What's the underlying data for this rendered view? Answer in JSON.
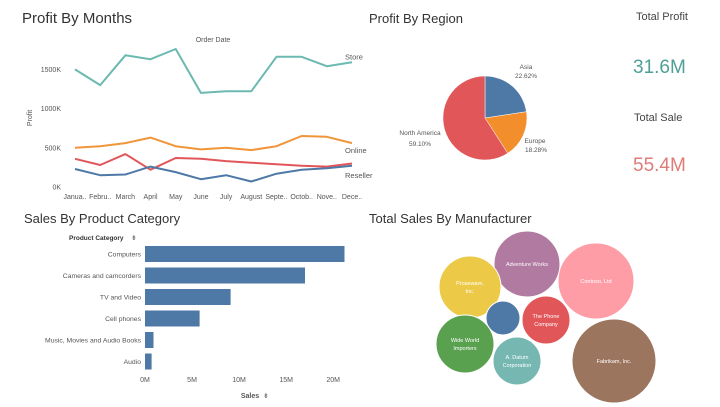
{
  "dashboard": {
    "profit_by_months_title": "Profit By Months",
    "profit_by_region_title": "Profit By Region",
    "sales_by_category_title": "Sales By Product Category",
    "sales_by_manufacturer_title": "Total Sales By Manufacturer"
  },
  "kpis": {
    "total_profit_label": "Total Profit",
    "total_profit_value": "31.6M",
    "total_profit_color": "#4e9f97",
    "total_sale_label": "Total Sale",
    "total_sale_value": "55.4M",
    "total_sale_color": "#e07b78"
  },
  "chart_data": [
    {
      "type": "line",
      "title": "Profit By Months",
      "xlabel": "Order Date",
      "ylabel": "Profit",
      "categories": [
        "Janua..",
        "Febru..",
        "March",
        "April",
        "May",
        "June",
        "July",
        "August",
        "Septe..",
        "Octob..",
        "Nove..",
        "Dece.."
      ],
      "yticks": [
        0,
        500000,
        1000000,
        1500000
      ],
      "ytick_labels": [
        "0K",
        "500K",
        "1000K",
        "1500K"
      ],
      "ylim": [
        0,
        1900000
      ],
      "series": [
        {
          "name": "Store",
          "color": "#6bb9b0",
          "values": [
            1500000,
            1300000,
            1680000,
            1630000,
            1760000,
            1200000,
            1220000,
            1220000,
            1660000,
            1660000,
            1540000,
            1590000
          ]
        },
        {
          "name": "Online",
          "color": "#f0953a",
          "values": [
            500000,
            520000,
            560000,
            630000,
            520000,
            480000,
            500000,
            470000,
            520000,
            650000,
            640000,
            560000
          ]
        },
        {
          "name": "",
          "color": "#e15759",
          "values": [
            360000,
            280000,
            420000,
            220000,
            370000,
            360000,
            330000,
            310000,
            290000,
            270000,
            260000,
            300000
          ]
        },
        {
          "name": "Reseller",
          "color": "#4e79a7",
          "values": [
            230000,
            150000,
            160000,
            260000,
            190000,
            100000,
            150000,
            70000,
            170000,
            220000,
            240000,
            270000
          ]
        }
      ]
    },
    {
      "type": "pie",
      "title": "Profit By Region",
      "slices": [
        {
          "label": "Asia",
          "pct_label": "22.62%",
          "value": 22.62,
          "color": "#4e79a7"
        },
        {
          "label": "Europe",
          "pct_label": "18.28%",
          "value": 18.28,
          "color": "#f28e2b"
        },
        {
          "label": "North America",
          "pct_label": "59.10%",
          "value": 59.1,
          "color": "#e15759"
        }
      ]
    },
    {
      "type": "bar",
      "orientation": "horizontal",
      "title": "Sales By Product Category",
      "category_header": "Product Category",
      "xlabel": "Sales",
      "categories": [
        "Computers",
        "Cameras and camcorders",
        "TV and Video",
        "Cell phones",
        "Music, Movies and Audio Books",
        "Audio"
      ],
      "values": [
        21200000,
        17000000,
        9100000,
        5800000,
        900000,
        700000
      ],
      "xticks": [
        0,
        5000000,
        10000000,
        15000000,
        20000000
      ],
      "xtick_labels": [
        "0M",
        "5M",
        "10M",
        "15M",
        "20M"
      ],
      "xlim": [
        0,
        22000000
      ],
      "color": "#4e79a7"
    },
    {
      "type": "bubble",
      "title": "Total Sales By Manufacturer",
      "bubbles": [
        {
          "label": "Adventure Works",
          "color": "#b07aa1",
          "size": 11
        },
        {
          "label": "Contoso, Ltd",
          "color": "#ff9da7",
          "size": 15
        },
        {
          "label": "Proseware, Inc.",
          "color": "#edc948",
          "size": 9
        },
        {
          "label": "",
          "color": "#4e79a7",
          "size": 3
        },
        {
          "label": "The Phone Company",
          "color": "#e15759",
          "size": 5.5
        },
        {
          "label": "Wide World Importers",
          "color": "#59a14f",
          "size": 7
        },
        {
          "label": "A. Datum Corporation",
          "color": "#76b7b2",
          "size": 5
        },
        {
          "label": "Fabrikam, Inc.",
          "color": "#9c755f",
          "size": 16
        }
      ]
    }
  ]
}
